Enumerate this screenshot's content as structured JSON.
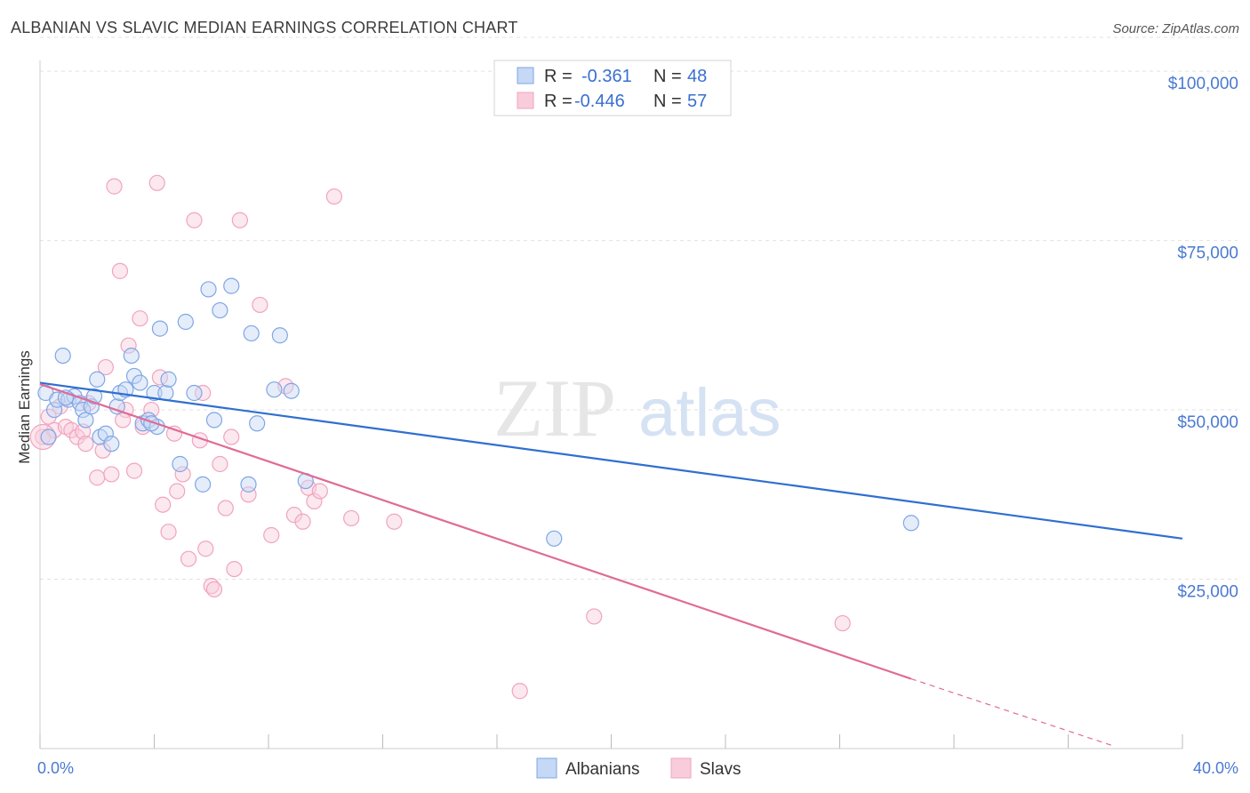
{
  "title": "ALBANIAN VS SLAVIC MEDIAN EARNINGS CORRELATION CHART",
  "source": "Source: ZipAtlas.com",
  "watermark": {
    "zip": "ZIP",
    "atlas": "atlas"
  },
  "legend": {
    "rows": [
      {
        "r_label": "R =",
        "r_value": "-0.361",
        "n_label": "N =",
        "n_value": "48",
        "color": "#7fa6e6"
      },
      {
        "r_label": "R =",
        "r_value": "-0.446",
        "n_label": "N =",
        "n_value": "57",
        "color": "#f0a4bf"
      }
    ]
  },
  "chart_data": {
    "type": "scatter",
    "title": "ALBANIAN VS SLAVIC MEDIAN EARNINGS CORRELATION CHART",
    "xlabel": "",
    "ylabel": "Median Earnings",
    "xlim": [
      0,
      40
    ],
    "ylim": [
      0,
      105000
    ],
    "x_tick_labels": [
      "0.0%",
      "40.0%"
    ],
    "y_ticks": [
      25000,
      50000,
      75000,
      100000
    ],
    "y_tick_labels": [
      "$25,000",
      "$50,000",
      "$75,000",
      "$100,000"
    ],
    "grid": true,
    "legend_position": "top-center",
    "series": [
      {
        "name": "Albanians",
        "color": "#7fa6e6",
        "line_color": "#2f6fd0",
        "trend": {
          "x": [
            0,
            40
          ],
          "y": [
            54000,
            31000
          ]
        },
        "points": [
          [
            0.2,
            52500
          ],
          [
            0.3,
            46000
          ],
          [
            0.5,
            50000
          ],
          [
            0.6,
            51500
          ],
          [
            0.8,
            58000
          ],
          [
            1.0,
            51500
          ],
          [
            1.2,
            52000
          ],
          [
            1.4,
            51000
          ],
          [
            1.5,
            50000
          ],
          [
            1.6,
            48500
          ],
          [
            1.8,
            50500
          ],
          [
            2.0,
            54500
          ],
          [
            2.1,
            46000
          ],
          [
            2.3,
            46500
          ],
          [
            2.5,
            45000
          ],
          [
            2.7,
            50500
          ],
          [
            2.8,
            52500
          ],
          [
            3.0,
            53000
          ],
          [
            3.2,
            58000
          ],
          [
            3.3,
            55000
          ],
          [
            3.5,
            54000
          ],
          [
            3.6,
            48000
          ],
          [
            3.8,
            48500
          ],
          [
            4.0,
            52500
          ],
          [
            4.1,
            47500
          ],
          [
            4.2,
            62000
          ],
          [
            4.4,
            52500
          ],
          [
            4.5,
            54500
          ],
          [
            4.9,
            42000
          ],
          [
            5.1,
            63000
          ],
          [
            5.4,
            52500
          ],
          [
            5.7,
            39000
          ],
          [
            5.9,
            67800
          ],
          [
            6.1,
            48500
          ],
          [
            6.3,
            64700
          ],
          [
            6.7,
            68300
          ],
          [
            7.3,
            39000
          ],
          [
            7.4,
            61300
          ],
          [
            7.6,
            48000
          ],
          [
            8.2,
            53000
          ],
          [
            8.4,
            61000
          ],
          [
            8.8,
            52800
          ],
          [
            9.3,
            39500
          ],
          [
            18.0,
            31000
          ],
          [
            30.5,
            33300
          ],
          [
            1.9,
            52000
          ],
          [
            0.9,
            51800
          ],
          [
            3.9,
            48000
          ]
        ]
      },
      {
        "name": "Slavs",
        "color": "#f0a4bf",
        "line_color": "#e06b96",
        "trend": {
          "x": [
            0,
            30.5
          ],
          "y": [
            53800,
            10300
          ]
        },
        "trend_extension": {
          "x": [
            30.5,
            37.5
          ],
          "y": [
            10300,
            500
          ]
        },
        "points": [
          [
            0.1,
            46000
          ],
          [
            0.3,
            49000
          ],
          [
            0.5,
            47000
          ],
          [
            0.7,
            50500
          ],
          [
            0.9,
            47500
          ],
          [
            1.1,
            47000
          ],
          [
            1.3,
            46000
          ],
          [
            1.5,
            46800
          ],
          [
            1.7,
            51000
          ],
          [
            2.0,
            40000
          ],
          [
            2.2,
            44000
          ],
          [
            2.3,
            56300
          ],
          [
            2.5,
            40500
          ],
          [
            2.6,
            83000
          ],
          [
            2.8,
            70500
          ],
          [
            3.0,
            50000
          ],
          [
            3.1,
            59500
          ],
          [
            3.3,
            41000
          ],
          [
            3.5,
            63500
          ],
          [
            3.6,
            47500
          ],
          [
            3.9,
            50000
          ],
          [
            4.1,
            83500
          ],
          [
            4.2,
            54800
          ],
          [
            4.3,
            36000
          ],
          [
            4.5,
            32000
          ],
          [
            4.7,
            46500
          ],
          [
            4.8,
            38000
          ],
          [
            5.0,
            40500
          ],
          [
            5.2,
            28000
          ],
          [
            5.4,
            78000
          ],
          [
            5.6,
            45500
          ],
          [
            5.7,
            52500
          ],
          [
            5.8,
            29500
          ],
          [
            6.0,
            24000
          ],
          [
            6.1,
            23500
          ],
          [
            6.3,
            42000
          ],
          [
            6.5,
            35500
          ],
          [
            6.7,
            46000
          ],
          [
            6.8,
            26500
          ],
          [
            7.0,
            78000
          ],
          [
            7.3,
            37500
          ],
          [
            7.7,
            65500
          ],
          [
            8.1,
            31500
          ],
          [
            8.6,
            53500
          ],
          [
            8.9,
            34500
          ],
          [
            9.2,
            33500
          ],
          [
            9.4,
            38500
          ],
          [
            9.6,
            36500
          ],
          [
            9.8,
            38000
          ],
          [
            10.3,
            81500
          ],
          [
            10.9,
            34000
          ],
          [
            12.4,
            33500
          ],
          [
            16.8,
            8500
          ],
          [
            19.4,
            19500
          ],
          [
            28.1,
            18500
          ],
          [
            1.6,
            45000
          ],
          [
            2.9,
            48500
          ]
        ]
      }
    ]
  }
}
